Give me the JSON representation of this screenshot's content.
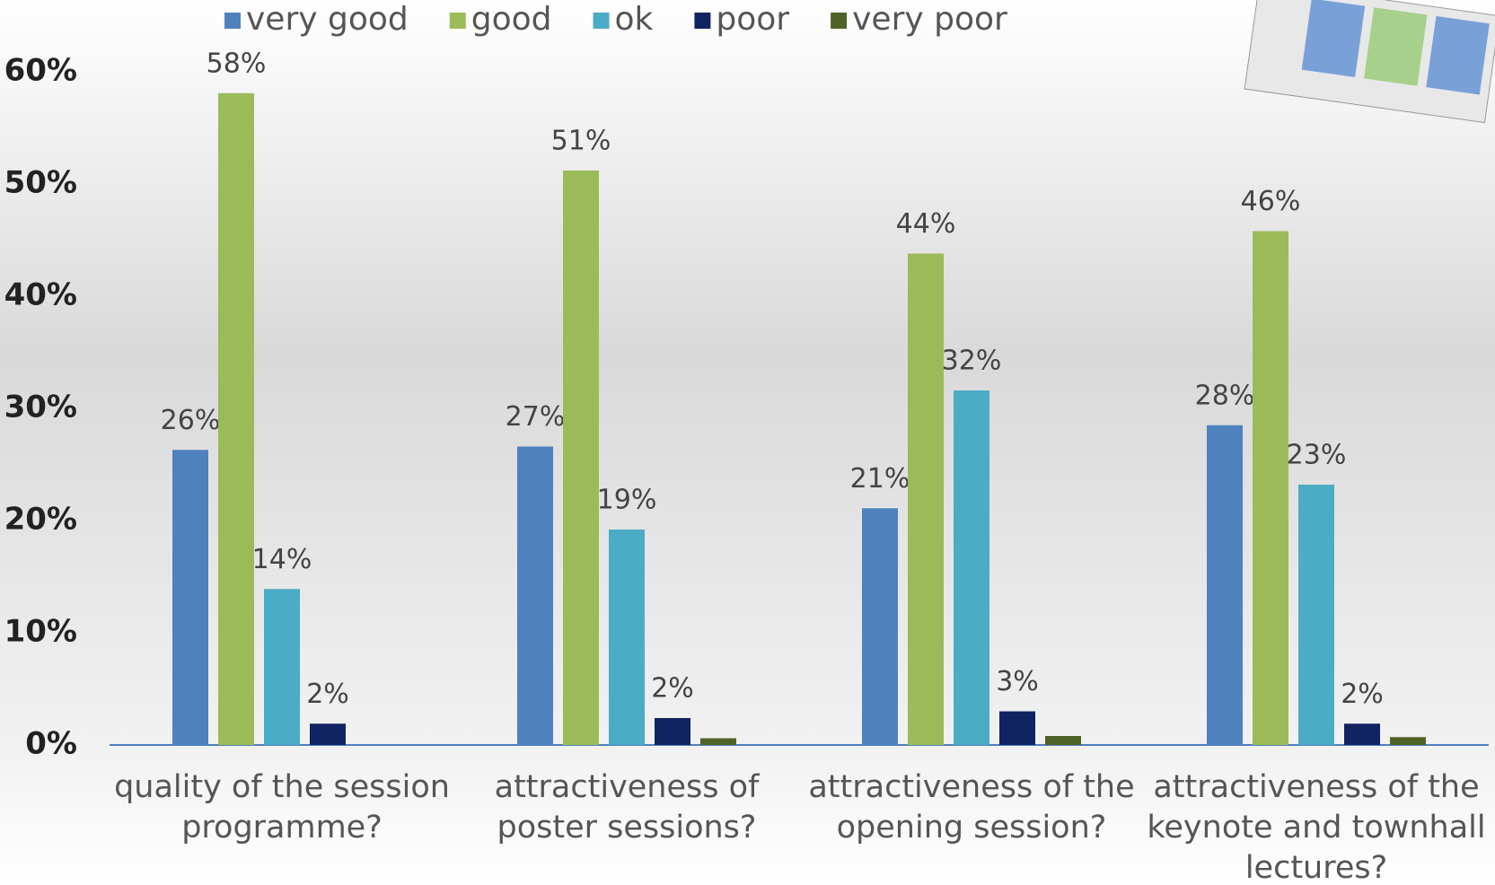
{
  "chart_data": {
    "type": "bar",
    "categories": [
      "quality of the session programme?",
      "attractiveness of poster sessions?",
      "attractiveness of the opening session?",
      "attractiveness of the keynote and townhall lectures?"
    ],
    "series": [
      {
        "name": "very good",
        "color": "#4f81bd",
        "values": [
          26.3,
          26.6,
          21.1,
          28.5
        ],
        "value_labels": [
          "26%",
          "27%",
          "21%",
          "28%"
        ]
      },
      {
        "name": "good",
        "color": "#9bbb59",
        "values": [
          58.1,
          51.2,
          43.8,
          45.8
        ],
        "value_labels": [
          "58%",
          "51%",
          "44%",
          "46%"
        ]
      },
      {
        "name": "ok",
        "color": "#4bacc6",
        "values": [
          13.9,
          19.2,
          31.6,
          23.2
        ],
        "value_labels": [
          "14%",
          "19%",
          "32%",
          "23%"
        ]
      },
      {
        "name": "poor",
        "color": "#0f2460",
        "values": [
          1.9,
          2.4,
          3.0,
          1.9
        ],
        "value_labels": [
          "2%",
          "2%",
          "3%",
          "2%"
        ]
      },
      {
        "name": "very poor",
        "color": "#4f6228",
        "values": [
          0,
          0.6,
          0.8,
          0.7
        ],
        "value_labels": [
          null,
          null,
          null,
          null
        ]
      }
    ],
    "ylim": [
      0,
      60
    ],
    "yticks": [
      {
        "value": 0,
        "label": "0%"
      },
      {
        "value": 10,
        "label": "10%"
      },
      {
        "value": 20,
        "label": "20%"
      },
      {
        "value": 30,
        "label": "30%"
      },
      {
        "value": 40,
        "label": "40%"
      },
      {
        "value": 50,
        "label": "50%"
      },
      {
        "value": 60,
        "label": "60%"
      }
    ],
    "legend": "top"
  }
}
